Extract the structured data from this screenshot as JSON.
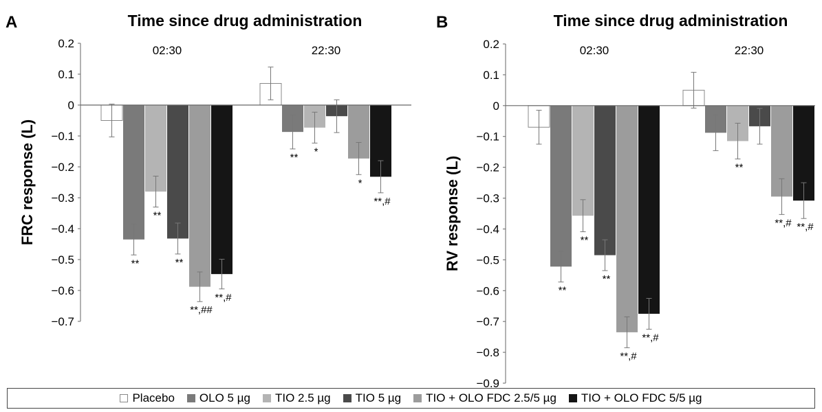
{
  "colors": {
    "placebo": "#ffffff",
    "olo5": "#7a7a7a",
    "tio25": "#b4b4b4",
    "tio5": "#4a4a4a",
    "fdc25": "#9c9c9c",
    "fdc55": "#151515",
    "placebo_outline": "#888888",
    "axis": "#666666",
    "error_bar": "#777777"
  },
  "legend": [
    {
      "label": "Placebo",
      "color_key": "placebo"
    },
    {
      "label": "OLO 5 µg",
      "color_key": "olo5"
    },
    {
      "label": "TIO 2.5 µg",
      "color_key": "tio25"
    },
    {
      "label": "TIO 5 µg",
      "color_key": "tio5"
    },
    {
      "label": "TIO + OLO FDC 2.5/5 µg",
      "color_key": "fdc25"
    },
    {
      "label": "TIO + OLO FDC 5/5 µg",
      "color_key": "fdc55"
    }
  ],
  "chart_data": [
    {
      "type": "bar",
      "panel_label": "A",
      "title": "Time since drug administration",
      "ylabel": "FRC response (L)",
      "ylim": [
        -0.7,
        0.2
      ],
      "yticks": [
        0.2,
        0.1,
        0,
        -0.1,
        -0.2,
        -0.3,
        -0.4,
        -0.5,
        -0.6,
        -0.7
      ],
      "ytick_labels": [
        "0.2",
        "0.1",
        "0",
        "−0.1",
        "−0.2",
        "−0.3",
        "−0.4",
        "−0.5",
        "−0.6",
        "−0.7"
      ],
      "categories": [
        "02:30",
        "22:30"
      ],
      "series": [
        {
          "name": "Placebo",
          "values": [
            -0.05,
            0.07
          ],
          "errors": [
            0.053,
            0.053
          ],
          "annotations": [
            "",
            ""
          ]
        },
        {
          "name": "OLO 5 µg",
          "values": [
            -0.435,
            -0.087
          ],
          "errors": [
            0.05,
            0.055
          ],
          "annotations": [
            "**",
            "**"
          ]
        },
        {
          "name": "TIO 2.5 µg",
          "values": [
            -0.28,
            -0.073
          ],
          "errors": [
            0.05,
            0.05
          ],
          "annotations": [
            "**",
            "*"
          ]
        },
        {
          "name": "TIO 5 µg",
          "values": [
            -0.432,
            -0.036
          ],
          "errors": [
            0.05,
            0.053
          ],
          "annotations": [
            "**",
            ""
          ]
        },
        {
          "name": "TIO + OLO FDC 2.5/5 µg",
          "values": [
            -0.588,
            -0.173
          ],
          "errors": [
            0.048,
            0.052
          ],
          "annotations": [
            "**,##",
            "*"
          ]
        },
        {
          "name": "TIO + OLO FDC 5/5 µg",
          "values": [
            -0.547,
            -0.232
          ],
          "errors": [
            0.048,
            0.052
          ],
          "annotations": [
            "**,#",
            "**,#"
          ]
        }
      ]
    },
    {
      "type": "bar",
      "panel_label": "B",
      "title": "Time since drug administration",
      "ylabel": "RV response (L)",
      "ylim": [
        -0.9,
        0.2
      ],
      "yticks": [
        0.2,
        0.1,
        0,
        -0.1,
        -0.2,
        -0.3,
        -0.4,
        -0.5,
        -0.6,
        -0.7,
        -0.8,
        -0.9
      ],
      "ytick_labels": [
        "0.2",
        "0.1",
        "0",
        "−0.1",
        "−0.2",
        "−0.3",
        "−0.4",
        "−0.5",
        "−0.6",
        "−0.7",
        "−0.8",
        "−0.9"
      ],
      "categories": [
        "02:30",
        "22:30"
      ],
      "series": [
        {
          "name": "Placebo",
          "values": [
            -0.07,
            0.05
          ],
          "errors": [
            0.055,
            0.058
          ],
          "annotations": [
            "",
            ""
          ]
        },
        {
          "name": "OLO 5 µg",
          "values": [
            -0.522,
            -0.088
          ],
          "errors": [
            0.05,
            0.058
          ],
          "annotations": [
            "**",
            ""
          ]
        },
        {
          "name": "TIO 2.5 µg",
          "values": [
            -0.357,
            -0.115
          ],
          "errors": [
            0.052,
            0.058
          ],
          "annotations": [
            "**",
            "**"
          ]
        },
        {
          "name": "TIO 5 µg",
          "values": [
            -0.485,
            -0.067
          ],
          "errors": [
            0.05,
            0.058
          ],
          "annotations": [
            "**",
            ""
          ]
        },
        {
          "name": "TIO + OLO FDC 2.5/5 µg",
          "values": [
            -0.735,
            -0.295
          ],
          "errors": [
            0.05,
            0.058
          ],
          "annotations": [
            "**,#",
            "**,#"
          ]
        },
        {
          "name": "TIO + OLO FDC 5/5 µg",
          "values": [
            -0.675,
            -0.308
          ],
          "errors": [
            0.05,
            0.058
          ],
          "annotations": [
            "**,#",
            "**,#"
          ]
        }
      ]
    }
  ]
}
